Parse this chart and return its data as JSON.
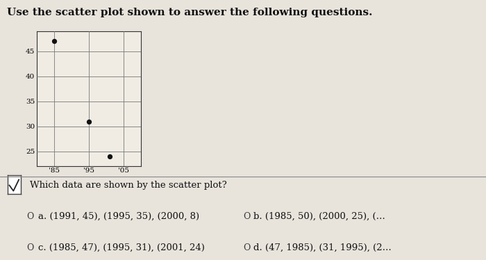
{
  "title": "Use the scatter plot shown to answer the following questions.",
  "scatter_x": [
    1985,
    1995,
    2001
  ],
  "scatter_y": [
    47,
    31,
    24
  ],
  "xlim": [
    1980,
    2010
  ],
  "ylim": [
    22,
    49
  ],
  "xticks": [
    1985,
    1995,
    2005
  ],
  "xticklabels": [
    "'85",
    "'95",
    "'05"
  ],
  "yticks": [
    25,
    30,
    35,
    40,
    45
  ],
  "yticklabels": [
    "25",
    "30",
    "35",
    "40",
    "45"
  ],
  "dot_color": "#111111",
  "dot_size": 18,
  "grid_color": "#777777",
  "bg_color": "#e8e4dc",
  "plot_bg": "#f0ece4",
  "title_fontsize": 11,
  "tick_fontsize": 7.5,
  "question_fontsize": 9.5,
  "option_fontsize": 9.5,
  "question_text": "Which data are shown by the scatter plot?",
  "opt_a": "a. (1991, 45), (1995, 35), (2000, 8)",
  "opt_b": "b. (1985, 50), (2000, 25), (…",
  "opt_c": "c. (1985, 47), (1995, 31), (2001, 24)",
  "opt_d": "d. (47, 1985), (31, 1995), (2…",
  "separator_color": "#888888",
  "checkbox_color": "#444444"
}
